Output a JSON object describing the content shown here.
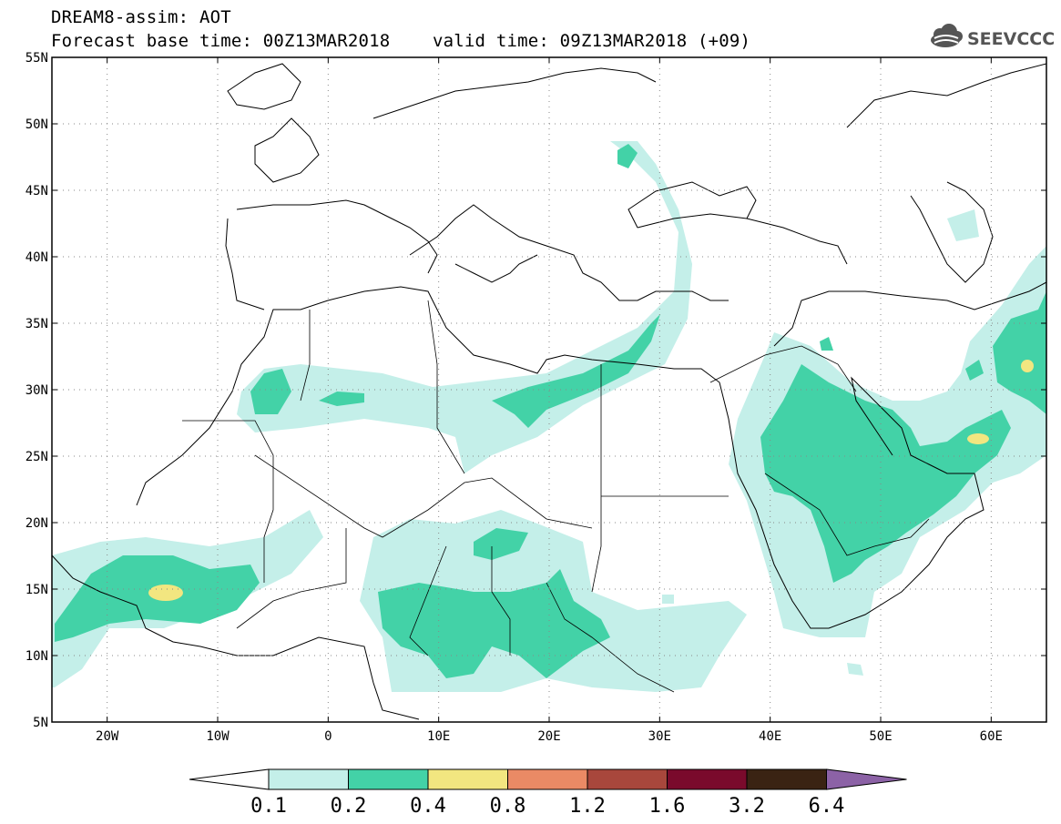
{
  "title": {
    "line1": "DREAM8-assim: AOT",
    "line2": "Forecast base time: 00Z13MAR2018    valid time: 09Z13MAR2018 (+09)"
  },
  "logo": {
    "text": "SEEVCCC",
    "icon": "cloud-icon"
  },
  "map": {
    "lon_range": [
      -25,
      65
    ],
    "lat_range": [
      5,
      55
    ],
    "lat_labels": [
      "55N",
      "50N",
      "45N",
      "40N",
      "35N",
      "30N",
      "25N",
      "20N",
      "15N",
      "10N",
      "5N"
    ],
    "lon_labels": [
      "20W",
      "10W",
      "0",
      "10E",
      "20E",
      "30E",
      "40E",
      "50E",
      "60E"
    ],
    "gridlines": "dotted"
  },
  "colorbar": {
    "labels": [
      "0.1",
      "0.2",
      "0.4",
      "0.8",
      "1.2",
      "1.6",
      "3.2",
      "6.4"
    ],
    "colors": [
      "#ffffff",
      "#c4efe9",
      "#43d2a7",
      "#f2e680",
      "#ea8a65",
      "#a8473c",
      "#7a0a2c",
      "#3a2313",
      "#8c62a6"
    ]
  },
  "colors": {
    "aot_0_1": "#c4efe9",
    "aot_0_2": "#43d2a7",
    "aot_0_4": "#f2e680"
  }
}
